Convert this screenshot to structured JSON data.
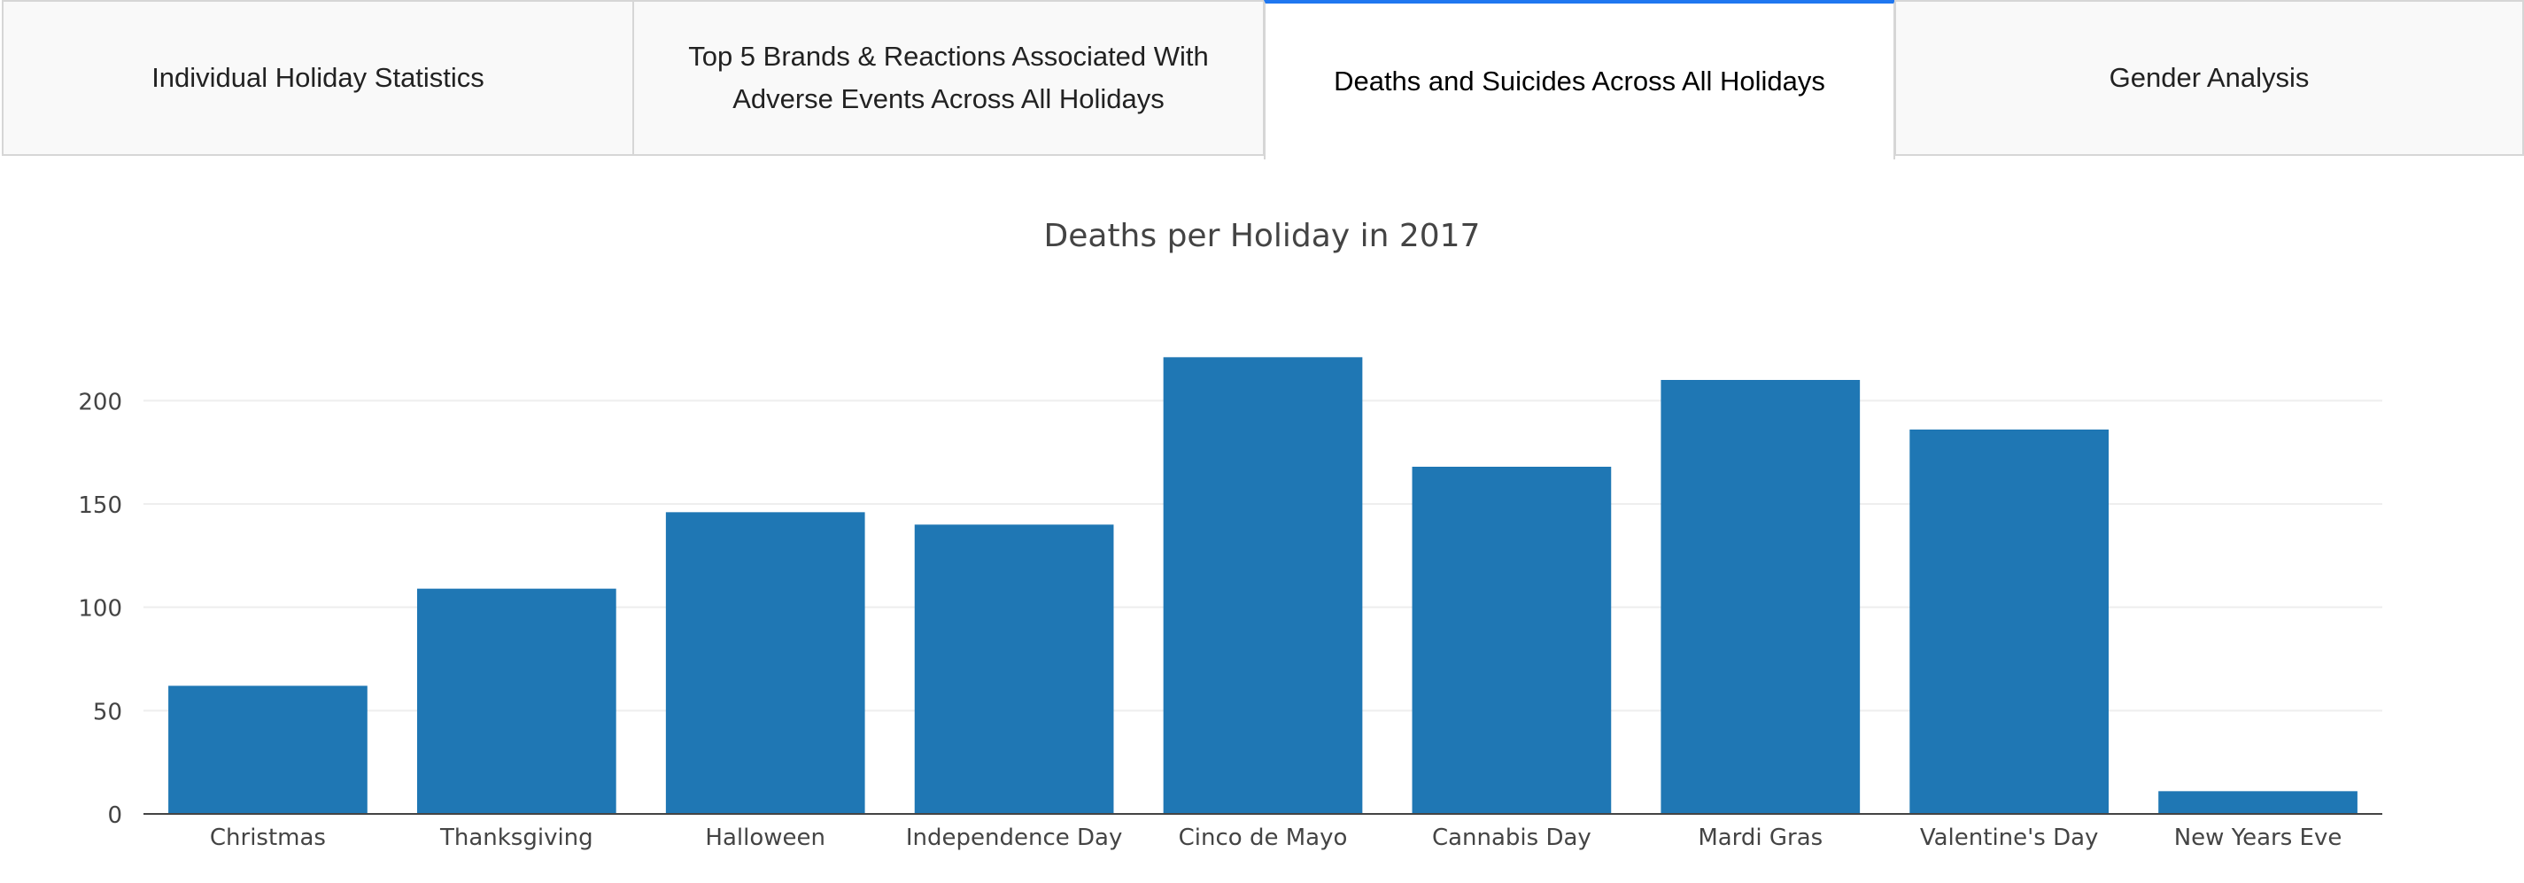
{
  "tabs": [
    {
      "label": "Individual Holiday Statistics",
      "active": false
    },
    {
      "label": "Top 5 Brands & Reactions Associated With Adverse Events Across All Holidays",
      "active": false
    },
    {
      "label": "Deaths and Suicides Across All Holidays",
      "active": true
    },
    {
      "label": "Gender Analysis",
      "active": false
    }
  ],
  "colors": {
    "bar": "#1f77b4",
    "grid": "#eeeeee",
    "axis": "#444444",
    "text": "#444444",
    "active_tab_accent": "#1f77f0"
  },
  "chart_data": {
    "type": "bar",
    "title": "Deaths per Holiday in 2017",
    "xlabel": "",
    "ylabel": "",
    "categories": [
      "Christmas",
      "Thanksgiving",
      "Halloween",
      "Independence Day",
      "Cinco de Mayo",
      "Cannabis Day",
      "Mardi Gras",
      "Valentine's Day",
      "New Years Eve"
    ],
    "values": [
      62,
      109,
      146,
      140,
      221,
      168,
      210,
      186,
      11
    ],
    "ylim": [
      0,
      231
    ],
    "yticks": [
      0,
      50,
      100,
      150,
      200
    ],
    "grid": true,
    "legend": "none"
  }
}
